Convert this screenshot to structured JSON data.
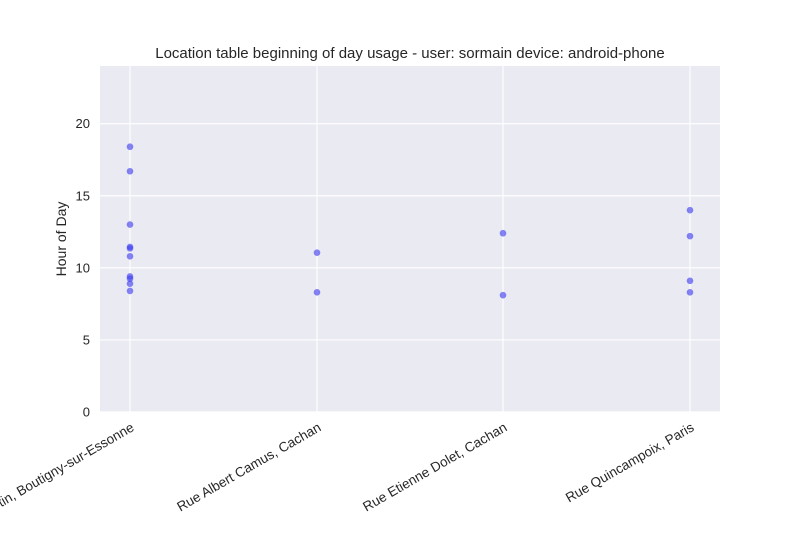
{
  "chart_data": {
    "type": "scatter",
    "title": "Location table beginning of day usage -  user: sormain device: android-phone",
    "xlabel": "",
    "ylabel": "Hour of Day",
    "categories": [
      "Croc Martin, Boutigny-sur-Essonne",
      "Rue Albert Camus, Cachan",
      "Rue Etienne Dolet, Cachan",
      "Rue Quincampoix, Paris"
    ],
    "yticks": [
      "0",
      "5",
      "10",
      "15",
      "20"
    ],
    "ylim": [
      0,
      24
    ],
    "grid": true,
    "series": [
      {
        "points": [
          {
            "x": "Croc Martin, Boutigny-sur-Essonne",
            "y": 18.4
          },
          {
            "x": "Croc Martin, Boutigny-sur-Essonne",
            "y": 16.7
          },
          {
            "x": "Croc Martin, Boutigny-sur-Essonne",
            "y": 13.0
          },
          {
            "x": "Croc Martin, Boutigny-sur-Essonne",
            "y": 11.45
          },
          {
            "x": "Croc Martin, Boutigny-sur-Essonne",
            "y": 11.35
          },
          {
            "x": "Croc Martin, Boutigny-sur-Essonne",
            "y": 10.8
          },
          {
            "x": "Croc Martin, Boutigny-sur-Essonne",
            "y": 9.4
          },
          {
            "x": "Croc Martin, Boutigny-sur-Essonne",
            "y": 9.25
          },
          {
            "x": "Croc Martin, Boutigny-sur-Essonne",
            "y": 8.9
          },
          {
            "x": "Croc Martin, Boutigny-sur-Essonne",
            "y": 8.4
          },
          {
            "x": "Rue Albert Camus, Cachan",
            "y": 11.05
          },
          {
            "x": "Rue Albert Camus, Cachan",
            "y": 8.3
          },
          {
            "x": "Rue Etienne Dolet, Cachan",
            "y": 12.4
          },
          {
            "x": "Rue Etienne Dolet, Cachan",
            "y": 8.1
          },
          {
            "x": "Rue Quincampoix, Paris",
            "y": 14.0
          },
          {
            "x": "Rue Quincampoix, Paris",
            "y": 12.2
          },
          {
            "x": "Rue Quincampoix, Paris",
            "y": 9.1
          },
          {
            "x": "Rue Quincampoix, Paris",
            "y": 8.3
          }
        ]
      }
    ],
    "colors": {
      "plot_background": "#eaeaf2",
      "grid": "#ffffff",
      "points": "#3b3bf0"
    }
  }
}
